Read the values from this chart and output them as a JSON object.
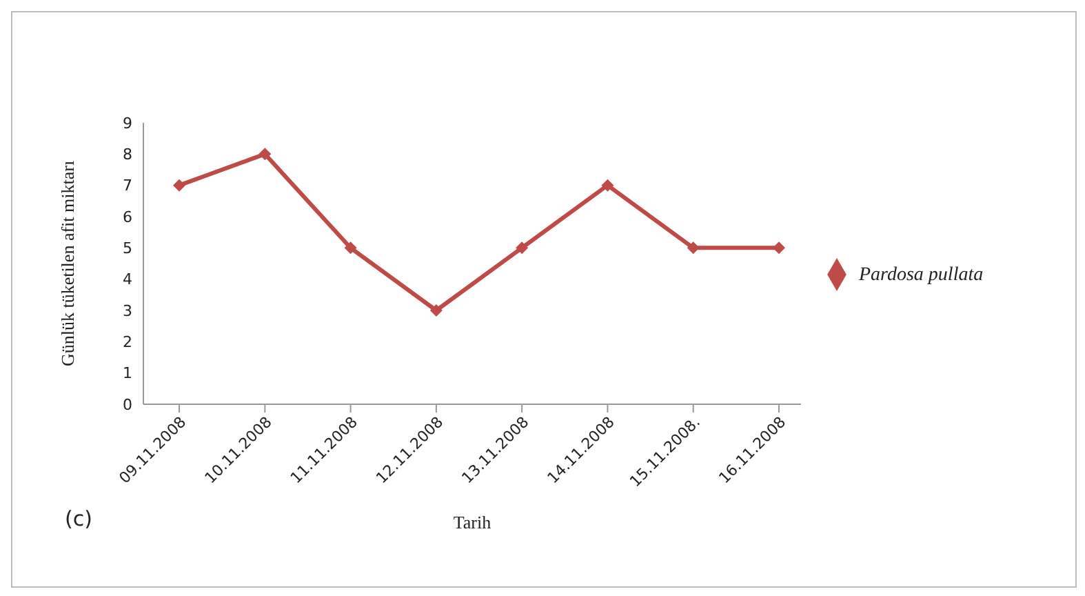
{
  "chart_data": {
    "type": "line",
    "xlabel": "Tarih",
    "ylabel": "Günlük tüketilen afit miktarı",
    "annotations": [
      "(c)"
    ],
    "categories": [
      "09.11.2008",
      "10.11.2008",
      "11.11.2008",
      "12.11.2008",
      "13.11.2008",
      "14.11.2008",
      "15.11.2008.",
      "16.11.2008"
    ],
    "series": [
      {
        "name": "Pardosa pullata",
        "color": "#be4b48",
        "values": [
          7,
          8,
          5,
          3,
          5,
          7,
          5,
          5
        ]
      }
    ],
    "ylim": [
      0,
      9
    ],
    "yticks": [
      0,
      1,
      2,
      3,
      4,
      5,
      6,
      7,
      8,
      9
    ],
    "grid": false,
    "legend": "right",
    "marker": "diamond",
    "line_style": "solid"
  }
}
